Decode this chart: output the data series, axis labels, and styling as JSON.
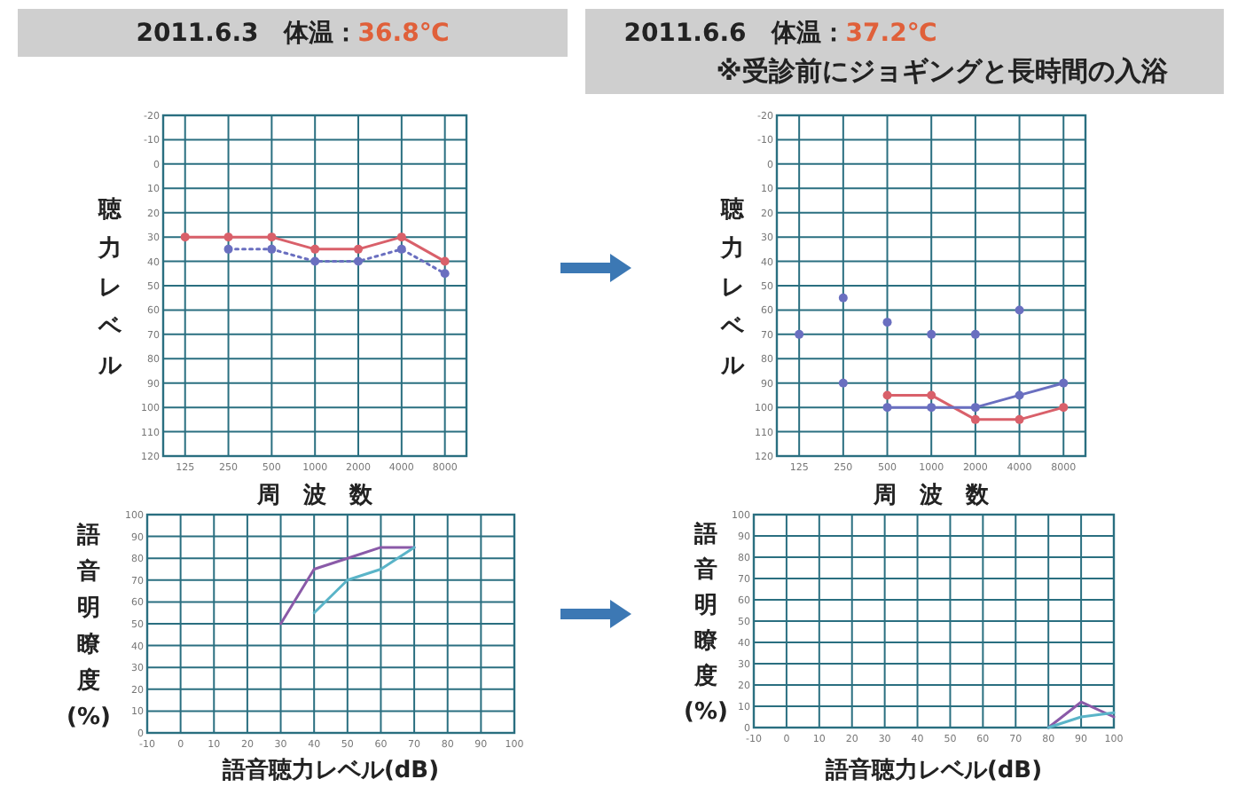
{
  "chart_data": [
    {
      "type": "line",
      "title": "2011.6.3　体温：36.8℃",
      "ylabel": "聴力レベル",
      "xlabel": "周　波　数",
      "log": "x",
      "xlim": [
        88,
        11300
      ],
      "xticks": [
        125,
        250,
        500,
        1000,
        2000,
        4000,
        8000
      ],
      "ylim": [
        120,
        -20
      ],
      "yticks": [
        -20,
        -10,
        0,
        10,
        20,
        30,
        40,
        50,
        60,
        70,
        80,
        90,
        100,
        110,
        120
      ],
      "grid": true,
      "marker": "circle",
      "series": [
        {
          "color": "#d9606a",
          "x": [
            125,
            250,
            500,
            1000,
            2000,
            4000,
            8000
          ],
          "values": [
            30,
            30,
            30,
            35,
            35,
            30,
            40
          ]
        },
        {
          "color": "#6a6fc0",
          "line_style": "dotted",
          "x": [
            250,
            500,
            1000,
            2000,
            4000,
            8000
          ],
          "values": [
            35,
            35,
            40,
            40,
            35,
            45
          ]
        }
      ]
    },
    {
      "type": "line",
      "title": "2011.6.6　体温：37.2℃",
      "subtitle": "※受診前にジョギングと長時間の入浴",
      "ylabel": "聴力レベル",
      "xlabel": "周　波　数",
      "log": "x",
      "xlim": [
        88,
        11300
      ],
      "xticks": [
        125,
        250,
        500,
        1000,
        2000,
        4000,
        8000
      ],
      "ylim": [
        120,
        -20
      ],
      "yticks": [
        -20,
        -10,
        0,
        10,
        20,
        30,
        40,
        50,
        60,
        70,
        80,
        90,
        100,
        110,
        120
      ],
      "grid": true,
      "marker": "circle",
      "series": [
        {
          "color": "#d9606a",
          "x": [
            500,
            1000,
            2000,
            4000,
            8000
          ],
          "values": [
            95,
            95,
            105,
            105,
            100
          ]
        },
        {
          "color": "#6a6fc0",
          "x": [
            500,
            1000,
            2000,
            4000,
            8000
          ],
          "values": [
            100,
            100,
            100,
            95,
            90
          ]
        },
        {
          "type": "scatter",
          "color": "#6a6fc0",
          "x": [
            125,
            250,
            250,
            500,
            1000,
            2000,
            4000
          ],
          "values": [
            70,
            55,
            90,
            65,
            70,
            70,
            60
          ]
        }
      ]
    },
    {
      "type": "line",
      "ylabel": "語音明瞭度(%)",
      "xlabel": "語音聴力レベル(dB)",
      "xlim": [
        -10,
        100
      ],
      "xticks": [
        -10,
        0,
        10,
        20,
        30,
        40,
        50,
        60,
        70,
        80,
        90,
        100
      ],
      "ylim": [
        0,
        100
      ],
      "yticks": [
        0,
        10,
        20,
        30,
        40,
        50,
        60,
        70,
        80,
        90,
        100
      ],
      "grid": true,
      "series": [
        {
          "color": "#8a5aa8",
          "x": [
            30,
            40,
            50,
            60,
            70
          ],
          "values": [
            50,
            75,
            80,
            85,
            85
          ]
        },
        {
          "color": "#5ab4c8",
          "x": [
            40,
            50,
            60,
            70
          ],
          "values": [
            55,
            70,
            75,
            85
          ]
        }
      ]
    },
    {
      "type": "line",
      "ylabel": "語音明瞭度(%)",
      "xlabel": "語音聴力レベル(dB)",
      "xlim": [
        -10,
        100
      ],
      "xticks": [
        -10,
        0,
        10,
        20,
        30,
        40,
        50,
        60,
        70,
        80,
        90,
        100
      ],
      "ylim": [
        0,
        100
      ],
      "yticks": [
        0,
        10,
        20,
        30,
        40,
        50,
        60,
        70,
        80,
        90,
        100
      ],
      "grid": true,
      "series": [
        {
          "color": "#8a5aa8",
          "x": [
            80,
            90,
            100
          ],
          "values": [
            0,
            12,
            5
          ]
        },
        {
          "color": "#5ab4c8",
          "x": [
            80,
            90,
            100
          ],
          "values": [
            0,
            5,
            7
          ]
        }
      ]
    }
  ]
}
